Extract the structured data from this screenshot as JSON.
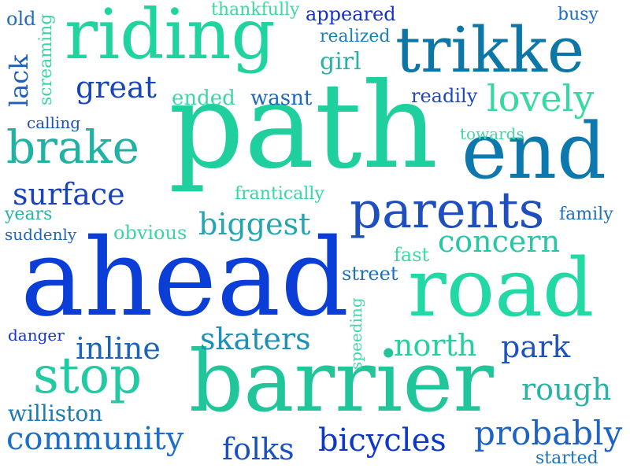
{
  "colors": {
    "blue_dark": "#1f3fbf",
    "blue_mid": "#1b62c9",
    "blue_bright": "#0b3ed6",
    "teal": "#0c76a6",
    "teal_light": "#2aa6b6",
    "green": "#20c69a",
    "mint": "#18d7a0",
    "mint_light": "#32e0a8"
  },
  "words": {
    "path": "path",
    "ahead": "ahead",
    "barrier": "barrier",
    "road": "road",
    "end": "end",
    "riding": "riding",
    "trikke": "trikke",
    "parents": "parents",
    "brake": "brake",
    "stop": "stop",
    "lovely": "lovely",
    "community": "community",
    "probably": "probably",
    "bicycles": "bicycles",
    "skaters": "skaters",
    "biggest": "biggest",
    "surface": "surface",
    "great": "great",
    "concern": "concern",
    "inline": "inline",
    "north": "north",
    "park": "park",
    "rough": "rough",
    "folks": "folks",
    "williston": "williston",
    "girl": "girl",
    "lack": "lack",
    "old": "old",
    "screaming": "screaming",
    "thankfully": "thankfully",
    "appeared": "appeared",
    "busy": "busy",
    "realized": "realized",
    "ended": "ended",
    "wasnt": "wasnt",
    "readily": "readily",
    "calling": "calling",
    "towards": "towards",
    "frantically": "frantically",
    "years": "years",
    "suddenly": "suddenly",
    "obvious": "obvious",
    "family": "family",
    "fast": "fast",
    "street": "street",
    "speeding": "speeding",
    "danger": "danger",
    "started": "started"
  }
}
